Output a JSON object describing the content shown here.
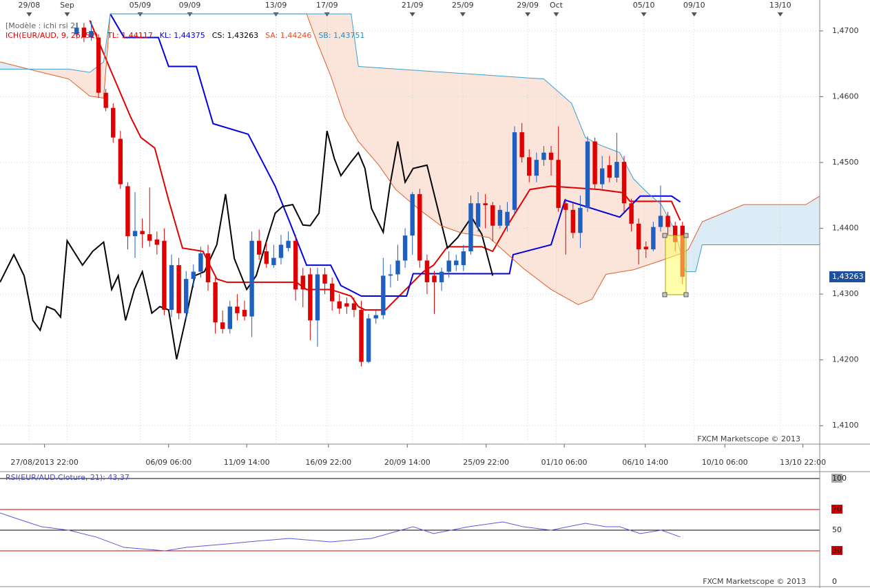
{
  "chart_data": [
    {
      "type": "candlestick",
      "model_label": "[Modèle : ichi rsi 2]",
      "indicator_label": "ICH(EUR/AUD, 9, 26, 52)",
      "indicator_color": "#e00000",
      "legend": [
        {
          "text": "TL: 1,44117",
          "color": "#e00000"
        },
        {
          "text": "KL: 1,44375",
          "color": "#0000e0"
        },
        {
          "text": "CS: 1,43263",
          "color": "#000000"
        },
        {
          "text": "SA: 1,44246",
          "color": "#e0502a"
        },
        {
          "text": "SB: 1,43751",
          "color": "#2a8cc0"
        }
      ],
      "watermark": "FXCM Marketscope © 2013",
      "xlim": [
        -0.5,
        111.8
      ],
      "ylim": [
        1.4072,
        1.4747
      ],
      "yticks": [
        {
          "value": 1.47,
          "label": "1,4700"
        },
        {
          "value": 1.46,
          "label": "1,4600"
        },
        {
          "value": 1.45,
          "label": "1,4500"
        },
        {
          "value": 1.44,
          "label": "1,4400"
        },
        {
          "value": 1.43,
          "label": "1,4300"
        },
        {
          "value": 1.42,
          "label": "1,4200"
        },
        {
          "value": 1.41,
          "label": "1,4100"
        }
      ],
      "top_ticks": [
        {
          "value": 3.5,
          "label": "29/08"
        },
        {
          "value": 8.7,
          "label": "Sep"
        },
        {
          "value": 18.7,
          "label": "05/09"
        },
        {
          "value": 25.5,
          "label": "09/09"
        },
        {
          "value": 37.3,
          "label": "13/09"
        },
        {
          "value": 44.3,
          "label": "17/09"
        },
        {
          "value": 56.0,
          "label": "21/09"
        },
        {
          "value": 62.9,
          "label": "25/09"
        },
        {
          "value": 71.8,
          "label": "29/09"
        },
        {
          "value": 75.7,
          "label": "Oct"
        },
        {
          "value": 87.7,
          "label": "05/10"
        },
        {
          "value": 94.6,
          "label": "09/10"
        },
        {
          "value": 106.4,
          "label": "13/10"
        }
      ],
      "xticks": [
        {
          "value": 5.6,
          "label": "27/08/2013 22:00"
        },
        {
          "value": 22.6,
          "label": "06/09 06:00"
        },
        {
          "value": 33.3,
          "label": "11/09 14:00"
        },
        {
          "value": 44.5,
          "label": "16/09 22:00"
        },
        {
          "value": 55.3,
          "label": "20/09 14:00"
        },
        {
          "value": 66.1,
          "label": "25/09 22:00"
        },
        {
          "value": 76.8,
          "label": "01/10 06:00"
        },
        {
          "value": 87.9,
          "label": "06/10 14:00"
        },
        {
          "value": 98.8,
          "label": "10/10 06:00"
        },
        {
          "value": 109.5,
          "label": "13/10 22:00"
        }
      ],
      "last_price": {
        "value": 1.43263,
        "label": "1,43263"
      },
      "up_color": "#1f5fbf",
      "down_color": "#e00000",
      "candles": {
        "x": [
          10,
          11,
          12,
          13,
          14,
          15,
          16,
          17,
          18,
          19,
          20,
          21,
          22,
          23,
          24,
          25,
          26,
          27,
          28,
          29,
          30,
          31,
          32,
          33,
          34,
          35,
          36,
          37,
          38,
          39,
          40,
          41,
          42,
          43,
          44,
          45,
          46,
          47,
          48,
          49,
          50,
          51,
          52,
          53,
          54,
          55,
          56,
          57,
          58,
          59,
          60,
          61,
          62,
          63,
          64,
          65,
          66,
          67,
          68,
          69,
          70,
          71,
          72,
          73,
          74,
          75,
          76,
          77,
          78,
          79,
          80,
          81,
          82,
          83,
          84,
          85,
          86,
          87,
          88,
          89,
          90,
          91,
          92,
          93
        ],
        "open": [
          1.4695,
          1.4705,
          1.469,
          1.469,
          1.4606,
          1.4583,
          1.4536,
          1.4464,
          1.4388,
          1.4396,
          1.4391,
          1.4383,
          1.4381,
          1.4276,
          1.4344,
          1.4271,
          1.4323,
          1.4334,
          1.4362,
          1.4318,
          1.4257,
          1.4247,
          1.4281,
          1.4276,
          1.4266,
          1.4381,
          1.4365,
          1.4344,
          1.4355,
          1.437,
          1.4381,
          1.4328,
          1.433,
          1.426,
          1.433,
          1.4316,
          1.4289,
          1.4286,
          1.4286,
          1.4276,
          1.4197,
          1.4263,
          1.4268,
          1.4328,
          1.433,
          1.4351,
          1.4389,
          1.4452,
          1.4351,
          1.4328,
          1.4318,
          1.4334,
          1.4344,
          1.4344,
          1.4365,
          1.4402,
          1.4438,
          1.4435,
          1.4404,
          1.4404,
          1.4428,
          1.4546,
          1.4508,
          1.448,
          1.4504,
          1.4515,
          1.4504,
          1.4438,
          1.4428,
          1.4393,
          1.4431,
          1.4532,
          1.4467,
          1.4496,
          1.4477,
          1.4501,
          1.4438,
          1.4407,
          1.4372,
          1.4368,
          1.4402,
          1.4419,
          1.4404,
          1.4404
        ],
        "high": [
          1.4712,
          1.4712,
          1.4715,
          1.4695,
          1.4612,
          1.459,
          1.4548,
          1.447,
          1.4455,
          1.4415,
          1.4462,
          1.4395,
          1.44,
          1.436,
          1.4355,
          1.4335,
          1.4345,
          1.4372,
          1.4375,
          1.4325,
          1.4275,
          1.429,
          1.43,
          1.429,
          1.4395,
          1.4398,
          1.438,
          1.4375,
          1.439,
          1.4395,
          1.439,
          1.434,
          1.434,
          1.434,
          1.434,
          1.4325,
          1.43,
          1.4295,
          1.4295,
          1.429,
          1.427,
          1.4275,
          1.4355,
          1.4345,
          1.4375,
          1.44,
          1.4455,
          1.446,
          1.436,
          1.4335,
          1.434,
          1.4365,
          1.436,
          1.4375,
          1.445,
          1.4455,
          1.4452,
          1.444,
          1.4435,
          1.444,
          1.4555,
          1.456,
          1.452,
          1.4515,
          1.4525,
          1.4525,
          1.4555,
          1.4445,
          1.444,
          1.445,
          1.454,
          1.4538,
          1.451,
          1.451,
          1.4545,
          1.451,
          1.4445,
          1.4415,
          1.438,
          1.441,
          1.4465,
          1.4425,
          1.441,
          1.441
        ],
        "low": [
          1.4688,
          1.4683,
          1.4685,
          1.4598,
          1.4578,
          1.453,
          1.446,
          1.4368,
          1.4355,
          1.437,
          1.4372,
          1.436,
          1.4268,
          1.4265,
          1.4262,
          1.4262,
          1.431,
          1.4325,
          1.4305,
          1.424,
          1.424,
          1.424,
          1.426,
          1.426,
          1.4235,
          1.4352,
          1.434,
          1.434,
          1.4345,
          1.4365,
          1.429,
          1.428,
          1.423,
          1.422,
          1.43,
          1.4275,
          1.427,
          1.427,
          1.4265,
          1.419,
          1.4195,
          1.4255,
          1.4262,
          1.431,
          1.432,
          1.434,
          1.436,
          1.434,
          1.43,
          1.427,
          1.4305,
          1.4325,
          1.4335,
          1.4335,
          1.436,
          1.4395,
          1.44,
          1.438,
          1.44,
          1.4395,
          1.442,
          1.45,
          1.447,
          1.447,
          1.4495,
          1.448,
          1.4425,
          1.436,
          1.4385,
          1.437,
          1.4425,
          1.446,
          1.446,
          1.447,
          1.447,
          1.4425,
          1.4395,
          1.4345,
          1.4355,
          1.4365,
          1.4395,
          1.439,
          1.4365,
          1.4315
        ],
        "close": [
          1.4705,
          1.469,
          1.47,
          1.4606,
          1.4583,
          1.4538,
          1.4467,
          1.4388,
          1.4396,
          1.4391,
          1.4381,
          1.4375,
          1.4276,
          1.4344,
          1.4271,
          1.4323,
          1.4334,
          1.4362,
          1.4318,
          1.4257,
          1.4247,
          1.4281,
          1.4271,
          1.4266,
          1.4381,
          1.436,
          1.4346,
          1.4355,
          1.4375,
          1.4381,
          1.4307,
          1.4307,
          1.426,
          1.433,
          1.4316,
          1.4289,
          1.4278,
          1.4281,
          1.4276,
          1.4197,
          1.4263,
          1.4268,
          1.4328,
          1.433,
          1.4351,
          1.4389,
          1.4452,
          1.4351,
          1.4318,
          1.4318,
          1.4334,
          1.4351,
          1.4351,
          1.4365,
          1.4438,
          1.4438,
          1.4435,
          1.4404,
          1.4428,
          1.4425,
          1.4546,
          1.4508,
          1.448,
          1.4504,
          1.4515,
          1.4504,
          1.4431,
          1.4428,
          1.4393,
          1.4431,
          1.4532,
          1.4467,
          1.4491,
          1.4477,
          1.4501,
          1.4438,
          1.4407,
          1.4368,
          1.4368,
          1.4402,
          1.4419,
          1.4402,
          1.4379,
          1.43263
        ]
      },
      "cloud": {
        "senkou_a": 3,
        "senkou_b": 4,
        "colors": [
          "#fbe4da",
          "#dcecf6"
        ]
      },
      "lines": [
        {
          "color": "#e00000",
          "width": 2,
          "x": [
            11.8,
            14.6,
            17.4,
            18.8,
            20.7,
            22.6,
            24.5,
            27.3,
            29.2,
            30.6,
            40.1,
            41.5,
            44.8,
            47.6,
            48.6,
            49.5,
            52.3,
            57.5,
            58.9,
            60.8,
            65.5,
            67.0,
            68.9,
            72.1,
            75.0,
            81.6,
            84.9,
            85.8,
            91.5,
            92.7
          ],
          "values": [
            1.4716,
            1.4642,
            1.4569,
            1.4538,
            1.4522,
            1.4443,
            1.437,
            1.4365,
            1.4323,
            1.4318,
            1.4318,
            1.4307,
            1.4307,
            1.4297,
            1.4281,
            1.4276,
            1.4276,
            1.4334,
            1.4344,
            1.4372,
            1.4372,
            1.4365,
            1.4402,
            1.4459,
            1.4464,
            1.4459,
            1.4454,
            1.4441,
            1.4441,
            1.4412
          ]
        },
        {
          "color": "#0000e0",
          "width": 2,
          "x": [
            14.6,
            16.5,
            21.2,
            22.6,
            26.4,
            28.7,
            33.5,
            37.2,
            39.1,
            41.5,
            44.8,
            46.2,
            49.0,
            55.2,
            56.1,
            69.3,
            69.8,
            75.0,
            76.9,
            84.4,
            87.2,
            91.5,
            92.7
          ],
          "values": [
            1.4726,
            1.469,
            1.469,
            1.4646,
            1.4646,
            1.4559,
            1.4543,
            1.4464,
            1.4412,
            1.4344,
            1.4344,
            1.4313,
            1.4297,
            1.4297,
            1.4331,
            1.4331,
            1.436,
            1.4375,
            1.4443,
            1.4417,
            1.4449,
            1.4449,
            1.444
          ]
        },
        {
          "color": "#000000",
          "width": 2,
          "x": [
            -0.5,
            1.4,
            2.8,
            4.0,
            5.0,
            5.9,
            7.0,
            7.8,
            8.7,
            10.8,
            12.2,
            13.7,
            14.8,
            15.7,
            16.7,
            17.9,
            19.0,
            20.3,
            21.4,
            22.6,
            23.7,
            25.0,
            26.2,
            27.5,
            29.2,
            30.4,
            31.6,
            33.3,
            34.6,
            36.3,
            37.2,
            38.2,
            39.6,
            41.0,
            42.0,
            43.2,
            44.3,
            45.3,
            46.2,
            47.6,
            48.6,
            49.5,
            50.4,
            52.0,
            52.9,
            54.0,
            55.0,
            56.1,
            58.0,
            59.4,
            60.8,
            62.2,
            64.1,
            65.5,
            67.0
          ],
          "values": [
            1.4318,
            1.436,
            1.4328,
            1.426,
            1.4245,
            1.4281,
            1.4276,
            1.4265,
            1.4381,
            1.4344,
            1.4365,
            1.4379,
            1.4307,
            1.4328,
            1.426,
            1.4307,
            1.4334,
            1.4271,
            1.4281,
            1.4276,
            1.4201,
            1.4265,
            1.4328,
            1.4334,
            1.4375,
            1.4452,
            1.4354,
            1.4307,
            1.4328,
            1.4391,
            1.4423,
            1.4433,
            1.4436,
            1.4405,
            1.4404,
            1.4423,
            1.4548,
            1.4506,
            1.448,
            1.4501,
            1.4515,
            1.4491,
            1.443,
            1.4394,
            1.4464,
            1.4532,
            1.447,
            1.4491,
            1.4496,
            1.4433,
            1.437,
            1.4386,
            1.4417,
            1.4391,
            1.4328
          ]
        },
        {
          "color": "#e0602a",
          "width": 1,
          "x": [
            -0.5,
            5.2,
            8.9,
            11.8,
            13.7,
            14.6,
            41.5,
            42.9,
            44.8,
            46.7,
            48.6,
            51.4,
            53.7,
            57.0,
            59.9,
            62.7,
            66.5,
            71.2,
            75.0,
            78.7,
            80.6,
            82.5,
            86.3,
            90.1,
            92.9,
            93.8,
            95.7,
            101.4,
            109.9,
            111.8
          ],
          "values": [
            1.4653,
            1.4637,
            1.4627,
            1.4601,
            1.4598,
            1.4726,
            1.4726,
            1.4684,
            1.4632,
            1.4569,
            1.4532,
            1.4496,
            1.4459,
            1.4428,
            1.4404,
            1.4393,
            1.4386,
            1.4339,
            1.4307,
            1.4284,
            1.4292,
            1.433,
            1.4337,
            1.4351,
            1.4362,
            1.4368,
            1.441,
            1.4436,
            1.4436,
            1.4449
          ]
        },
        {
          "color": "#3aa0d0",
          "width": 1,
          "x": [
            -0.5,
            8.9,
            11.8,
            13.7,
            14.6,
            47.6,
            48.6,
            74.0,
            77.8,
            79.7,
            81.6,
            84.4,
            86.3,
            88.2,
            90.1,
            92.0,
            93.4,
            94.8,
            95.7,
            111.8
          ],
          "values": [
            1.4642,
            1.4642,
            1.4637,
            1.4653,
            1.4726,
            1.4726,
            1.4646,
            1.4627,
            1.459,
            1.4538,
            1.4527,
            1.4515,
            1.4475,
            1.4454,
            1.4436,
            1.4396,
            1.4334,
            1.4334,
            1.4375,
            1.4375
          ]
        }
      ]
    },
    {
      "type": "line",
      "label": "RSI(EUR/AUD.Cloture, 21): 43,37",
      "label_color": "#4a4ad0",
      "watermark": "FXCM Marketscope © 2013",
      "color": "#5a5ad8",
      "xlim": [
        -0.5,
        111.8
      ],
      "ylim": [
        0,
        100
      ],
      "yticks": [
        100,
        70,
        50,
        30,
        0
      ],
      "tick_colors": [
        "#000000",
        "#d00000",
        "#000000",
        "#d00000",
        null
      ],
      "tick_label_bg": [
        "#a8a8a8",
        "#d00000",
        null,
        "#d00000",
        null
      ],
      "x": [
        -0.5,
        2.3,
        5.2,
        8.9,
        12.7,
        16.5,
        22.1,
        25.0,
        30.6,
        33.5,
        39.1,
        44.8,
        50.4,
        56.1,
        58.9,
        63.7,
        68.4,
        71.2,
        75.0,
        79.7,
        82.5,
        84.4,
        87.2,
        90.1,
        92.7
      ],
      "values": [
        66.7,
        60,
        53.3,
        50,
        43.3,
        33.3,
        30,
        33.3,
        36.7,
        38.7,
        42,
        38.7,
        42,
        53.3,
        46.7,
        53.3,
        58,
        53.3,
        50,
        56.7,
        53.3,
        53.3,
        46.7,
        50,
        43.37
      ]
    }
  ]
}
